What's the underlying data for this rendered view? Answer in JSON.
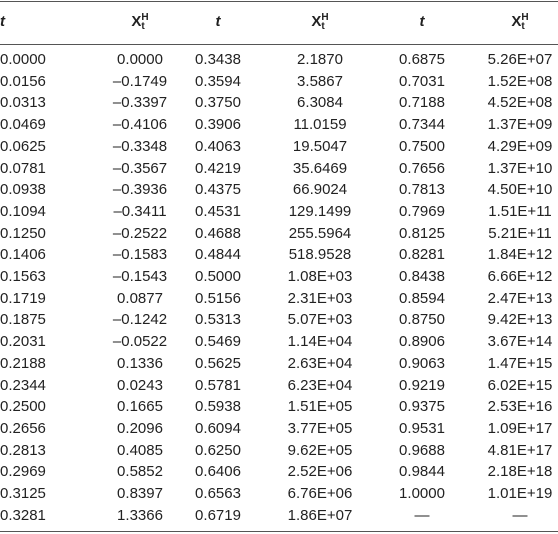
{
  "table": {
    "header": [
      {
        "base": "t"
      },
      {
        "base": "X",
        "sub": "t",
        "sup": "H"
      },
      {
        "base": "t"
      },
      {
        "base": "X",
        "sub": "t",
        "sup": "H"
      },
      {
        "base": "t"
      },
      {
        "base": "X",
        "sub": "t",
        "sup": "H"
      }
    ],
    "rows": [
      [
        "0.0000",
        "0.0000",
        "0.3438",
        "2.1870",
        "0.6875",
        "5.26E+07"
      ],
      [
        "0.0156",
        "–0.1749",
        "0.3594",
        "3.5867",
        "0.7031",
        "1.52E+08"
      ],
      [
        "0.0313",
        "–0.3397",
        "0.3750",
        "6.3084",
        "0.7188",
        "4.52E+08"
      ],
      [
        "0.0469",
        "–0.4106",
        "0.3906",
        "11.0159",
        "0.7344",
        "1.37E+09"
      ],
      [
        "0.0625",
        "–0.3348",
        "0.4063",
        "19.5047",
        "0.7500",
        "4.29E+09"
      ],
      [
        "0.0781",
        "–0.3567",
        "0.4219",
        "35.6469",
        "0.7656",
        "1.37E+10"
      ],
      [
        "0.0938",
        "–0.3936",
        "0.4375",
        "66.9024",
        "0.7813",
        "4.50E+10"
      ],
      [
        "0.1094",
        "–0.3411",
        "0.4531",
        "129.1499",
        "0.7969",
        "1.51E+11"
      ],
      [
        "0.1250",
        "–0.2522",
        "0.4688",
        "255.5964",
        "0.8125",
        "5.21E+11"
      ],
      [
        "0.1406",
        "–0.1583",
        "0.4844",
        "518.9528",
        "0.8281",
        "1.84E+12"
      ],
      [
        "0.1563",
        "–0.1543",
        "0.5000",
        "1.08E+03",
        "0.8438",
        "6.66E+12"
      ],
      [
        "0.1719",
        "0.0877",
        "0.5156",
        "2.31E+03",
        "0.8594",
        "2.47E+13"
      ],
      [
        "0.1875",
        "–0.1242",
        "0.5313",
        "5.07E+03",
        "0.8750",
        "9.42E+13"
      ],
      [
        "0.2031",
        "–0.0522",
        "0.5469",
        "1.14E+04",
        "0.8906",
        "3.67E+14"
      ],
      [
        "0.2188",
        "0.1336",
        "0.5625",
        "2.63E+04",
        "0.9063",
        "1.47E+15"
      ],
      [
        "0.2344",
        "0.0243",
        "0.5781",
        "6.23E+04",
        "0.9219",
        "6.02E+15"
      ],
      [
        "0.2500",
        "0.1665",
        "0.5938",
        "1.51E+05",
        "0.9375",
        "2.53E+16"
      ],
      [
        "0.2656",
        "0.2096",
        "0.6094",
        "3.77E+05",
        "0.9531",
        "1.09E+17"
      ],
      [
        "0.2813",
        "0.4085",
        "0.6250",
        "9.62E+05",
        "0.9688",
        "4.81E+17"
      ],
      [
        "0.2969",
        "0.5852",
        "0.6406",
        "2.52E+06",
        "0.9844",
        "2.18E+18"
      ],
      [
        "0.3125",
        "0.8397",
        "0.6563",
        "6.76E+06",
        "1.0000",
        "1.01E+19"
      ],
      [
        "0.3281",
        "1.3366",
        "0.6719",
        "1.86E+07",
        "—",
        "—"
      ]
    ]
  }
}
